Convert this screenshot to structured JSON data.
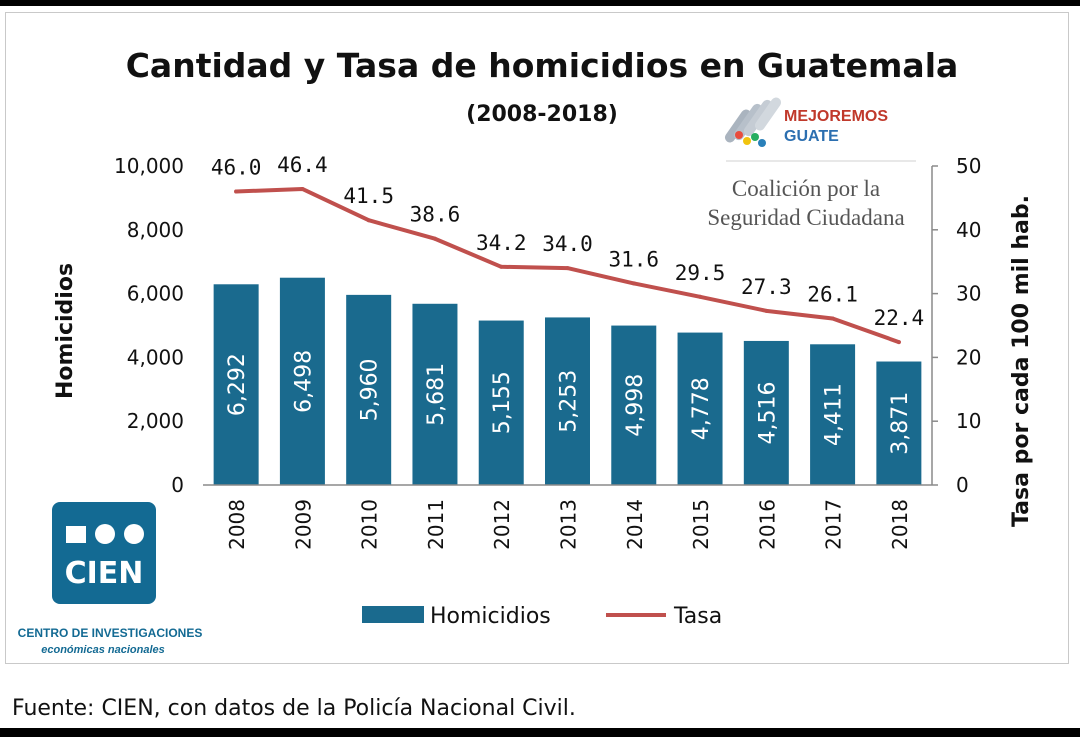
{
  "chart_data": {
    "type": "bar",
    "title": "Cantidad y Tasa de homicidios en Guatemala",
    "subtitle": "(2008-2018)",
    "categories": [
      "2008",
      "2009",
      "2010",
      "2011",
      "2012",
      "2013",
      "2014",
      "2015",
      "2016",
      "2017",
      "2018"
    ],
    "series": [
      {
        "name": "Homicidios",
        "type": "bar",
        "axis": "left",
        "color": "#1a6a8e",
        "values": [
          6292,
          6498,
          5960,
          5681,
          5155,
          5253,
          4998,
          4778,
          4516,
          4411,
          3871
        ],
        "labels": [
          "6,292",
          "6,498",
          "5,960",
          "5,681",
          "5,155",
          "5,253",
          "4,998",
          "4,778",
          "4,516",
          "4,411",
          "3,871"
        ]
      },
      {
        "name": "Tasa",
        "type": "line",
        "axis": "right",
        "color": "#c0504d",
        "values": [
          46.0,
          46.4,
          41.5,
          38.6,
          34.2,
          34.0,
          31.6,
          29.5,
          27.3,
          26.1,
          22.4
        ],
        "labels": [
          "46.0",
          "46.4",
          "41.5",
          "38.6",
          "34.2",
          "34.0",
          "31.6",
          "29.5",
          "27.3",
          "26.1",
          "22.4"
        ]
      }
    ],
    "ylabel": "Homicidios",
    "ylabel_right": "Tasa por cada 100 mil hab.",
    "ylim": [
      0,
      10000
    ],
    "ylim_right": [
      0,
      50
    ],
    "yticks": [
      "0",
      "2,000",
      "4,000",
      "6,000",
      "8,000",
      "10,000"
    ],
    "yticks_right": [
      "0",
      "10",
      "20",
      "30",
      "40",
      "50"
    ],
    "legend_position": "bottom",
    "grid": false
  },
  "logos": {
    "partner_name": "MEJOREMOS",
    "partner_name2": "GUATE",
    "coalition_line1": "Coalición por la",
    "coalition_line2": "Seguridad Ciudadana",
    "cien_text": "CIEN",
    "cien_line1": "CENTRO DE INVESTIGACIONES",
    "cien_line2": "económicas nacionales"
  },
  "source": "Fuente: CIEN, con datos de la Policía Nacional Civil."
}
